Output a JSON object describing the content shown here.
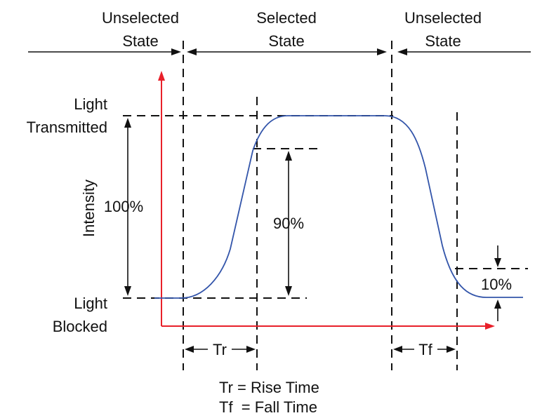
{
  "states": {
    "left_line1": "Unselected",
    "left_line2": "State",
    "middle_line1": "Selected",
    "middle_line2": "State",
    "right_line1": "Unselected",
    "right_line2": "State"
  },
  "levels": {
    "top_line1": "Light",
    "top_line2": "Transmitted",
    "bottom_line1": "Light",
    "bottom_line2": "Blocked"
  },
  "axis": {
    "y_label": "Intensity"
  },
  "measures": {
    "full_range": "100%",
    "rise_range": "90%",
    "fall_residual": "10%",
    "rise_time": "Tr",
    "fall_time": "Tf"
  },
  "legend": {
    "line1": "Tr = Rise Time",
    "line2": "Tf  = Fall Time"
  },
  "colors": {
    "curve": "#3355aa",
    "axes": "#e8202a",
    "ink": "#111111"
  }
}
